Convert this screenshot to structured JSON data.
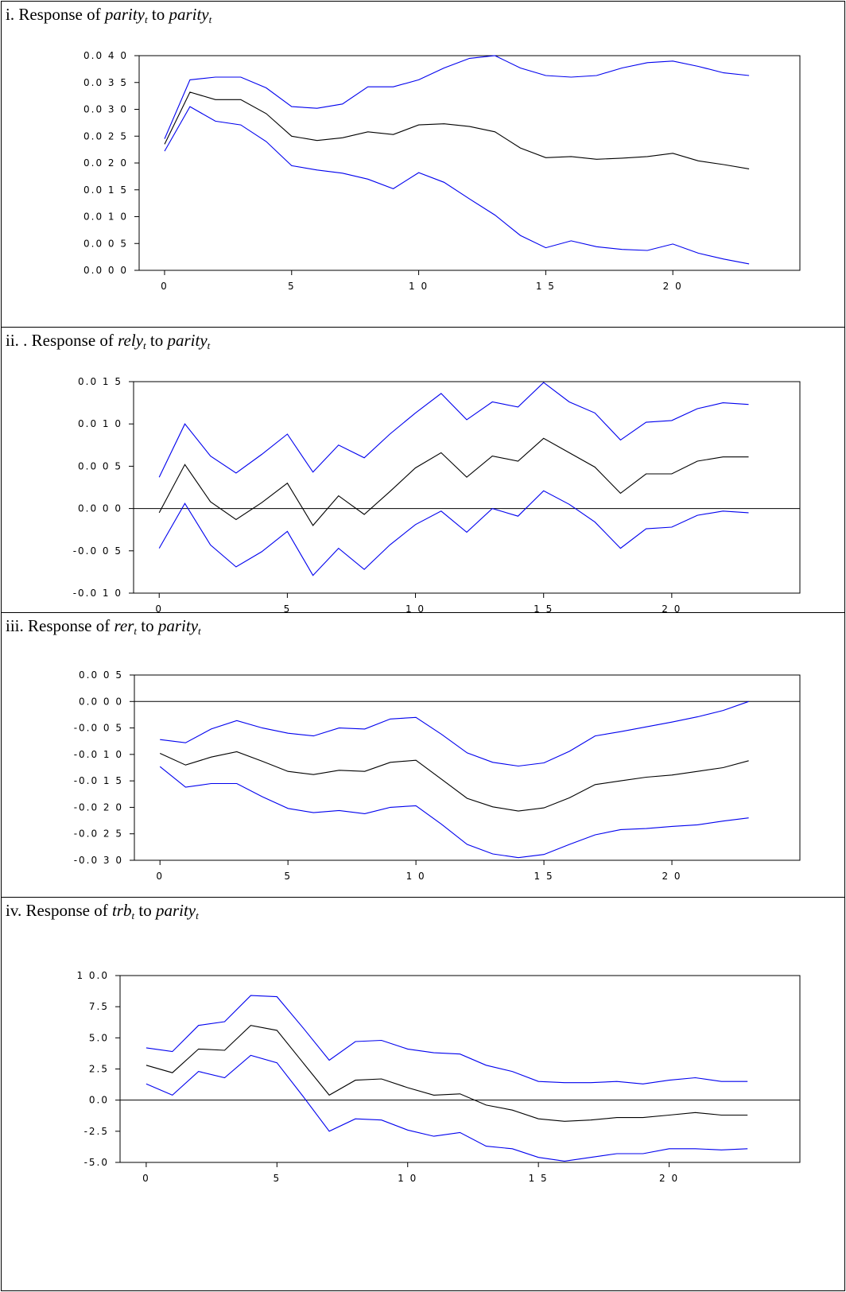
{
  "panels": [
    {
      "caption": {
        "prefix": "i. Response of ",
        "var": "parity",
        "sub": "t",
        "mid": " to ",
        "shock": "parity",
        "shock_sub": "t"
      },
      "chart_data": {
        "type": "line",
        "x": [
          0,
          1,
          2,
          3,
          4,
          5,
          6,
          7,
          8,
          9,
          10,
          11,
          12,
          13,
          14,
          15,
          16,
          17,
          18,
          19,
          20,
          21,
          22,
          23
        ],
        "series": [
          {
            "values": [
              0.0245,
              0.0355,
              0.036,
              0.036,
              0.034,
              0.0305,
              0.0302,
              0.031,
              0.0342,
              0.0342,
              0.0355,
              0.0377,
              0.0395,
              0.04,
              0.0377,
              0.0363,
              0.036,
              0.0363,
              0.0377,
              0.0387,
              0.039,
              0.038,
              0.0368,
              0.0363
            ],
            "color": "#0000ee"
          },
          {
            "values": [
              0.0235,
              0.0332,
              0.0318,
              0.0318,
              0.0292,
              0.025,
              0.0242,
              0.0247,
              0.0258,
              0.0253,
              0.0271,
              0.0273,
              0.0268,
              0.0258,
              0.0228,
              0.021,
              0.0212,
              0.0207,
              0.0209,
              0.0212,
              0.0218,
              0.0204,
              0.0197,
              0.0189
            ],
            "color": "#000000"
          },
          {
            "values": [
              0.0222,
              0.0305,
              0.0278,
              0.0271,
              0.024,
              0.0195,
              0.0187,
              0.0181,
              0.017,
              0.0152,
              0.0182,
              0.0164,
              0.0133,
              0.0103,
              0.0065,
              0.0042,
              0.0055,
              0.0044,
              0.0039,
              0.0037,
              0.0049,
              0.0032,
              0.0021,
              0.0012
            ],
            "color": "#0000ee"
          }
        ],
        "xticks": [
          0,
          5,
          10,
          15,
          20
        ],
        "xtick_labels": [
          "0",
          "5",
          "1 0",
          "1 5",
          "2 0"
        ],
        "yticks": [
          0.0,
          0.005,
          0.01,
          0.015,
          0.02,
          0.025,
          0.03,
          0.035,
          0.04
        ],
        "ytick_labels": [
          "0.0 0 0",
          "0.0 0 5",
          "0.0 1 0",
          "0.0 1 5",
          "0.0 2 0",
          "0.0 2 5",
          "0.0 3 0",
          "0.0 3 5",
          "0.0 4 0"
        ],
        "ylim": [
          0.0,
          0.04
        ],
        "xlim": [
          -1,
          25
        ],
        "zero_line": false
      }
    },
    {
      "caption": {
        "prefix": "ii. . Response of ",
        "var": "rely",
        "sub": "t",
        "mid": " to ",
        "shock": "parity",
        "shock_sub": "t"
      },
      "chart_data": {
        "type": "line",
        "x": [
          0,
          1,
          2,
          3,
          4,
          5,
          6,
          7,
          8,
          9,
          10,
          11,
          12,
          13,
          14,
          15,
          16,
          17,
          18,
          19,
          20,
          21,
          22,
          23
        ],
        "series": [
          {
            "values": [
              0.0037,
              0.01,
              0.0062,
              0.0042,
              0.0064,
              0.0088,
              0.0043,
              0.0075,
              0.006,
              0.0088,
              0.0113,
              0.0136,
              0.0105,
              0.0126,
              0.012,
              0.0149,
              0.0126,
              0.0113,
              0.0081,
              0.0102,
              0.0104,
              0.0118,
              0.0125,
              0.0123
            ],
            "color": "#0000ee"
          },
          {
            "values": [
              -0.0005,
              0.0052,
              0.0008,
              -0.0013,
              0.0007,
              0.003,
              -0.002,
              0.0015,
              -0.0007,
              0.002,
              0.0048,
              0.0066,
              0.0037,
              0.0062,
              0.0056,
              0.0083,
              0.0066,
              0.0049,
              0.0018,
              0.0041,
              0.0041,
              0.0056,
              0.0061,
              0.0061
            ],
            "color": "#000000"
          },
          {
            "values": [
              -0.0047,
              0.0006,
              -0.0043,
              -0.0069,
              -0.0051,
              -0.0027,
              -0.0079,
              -0.0047,
              -0.0072,
              -0.0043,
              -0.0019,
              -0.0003,
              -0.0028,
              0.0,
              -0.0009,
              0.0021,
              0.0005,
              -0.0016,
              -0.0047,
              -0.0024,
              -0.0022,
              -0.0008,
              -0.0003,
              -0.0005
            ],
            "color": "#0000ee"
          }
        ],
        "xticks": [
          0,
          5,
          10,
          15,
          20
        ],
        "xtick_labels": [
          "0",
          "5",
          "1 0",
          "1 5",
          "2 0"
        ],
        "yticks": [
          -0.01,
          -0.005,
          0.0,
          0.005,
          0.01,
          0.015
        ],
        "ytick_labels": [
          "-0.0 1 0",
          "-0.0 0 5",
          "0.0 0 0",
          "0.0 0 5",
          "0.0 1 0",
          "0.0 1 5"
        ],
        "ylim": [
          -0.01,
          0.015
        ],
        "xlim": [
          -1,
          25
        ],
        "zero_line": true
      }
    },
    {
      "caption": {
        "prefix": "iii. Response of ",
        "var": "rer",
        "sub": "t",
        "mid": " to ",
        "shock": "parity",
        "shock_sub": "t"
      },
      "chart_data": {
        "type": "line",
        "x": [
          0,
          1,
          2,
          3,
          4,
          5,
          6,
          7,
          8,
          9,
          10,
          11,
          12,
          13,
          14,
          15,
          16,
          17,
          18,
          19,
          20,
          21,
          22,
          23
        ],
        "series": [
          {
            "values": [
              -0.0072,
              -0.0078,
              -0.0052,
              -0.0036,
              -0.005,
              -0.006,
              -0.0065,
              -0.005,
              -0.0052,
              -0.0033,
              -0.003,
              -0.0062,
              -0.0097,
              -0.0115,
              -0.0122,
              -0.0116,
              -0.0094,
              -0.0065,
              -0.0057,
              -0.0048,
              -0.0039,
              -0.0029,
              -0.0017,
              0.0
            ],
            "color": "#0000ee"
          },
          {
            "values": [
              -0.0098,
              -0.012,
              -0.0105,
              -0.0095,
              -0.0113,
              -0.0132,
              -0.0138,
              -0.013,
              -0.0132,
              -0.0115,
              -0.0111,
              -0.0147,
              -0.0183,
              -0.0199,
              -0.0207,
              -0.0201,
              -0.0182,
              -0.0157,
              -0.015,
              -0.0143,
              -0.0139,
              -0.0132,
              -0.0125,
              -0.0112
            ],
            "color": "#000000"
          },
          {
            "values": [
              -0.0123,
              -0.0162,
              -0.0155,
              -0.0155,
              -0.018,
              -0.0202,
              -0.021,
              -0.0206,
              -0.0212,
              -0.02,
              -0.0197,
              -0.0232,
              -0.027,
              -0.0288,
              -0.0295,
              -0.0289,
              -0.027,
              -0.0252,
              -0.0242,
              -0.024,
              -0.0236,
              -0.0233,
              -0.0226,
              -0.022
            ],
            "color": "#0000ee"
          }
        ],
        "xticks": [
          0,
          5,
          10,
          15,
          20
        ],
        "xtick_labels": [
          "0",
          "5",
          "1 0",
          "1 5",
          "2 0"
        ],
        "yticks": [
          -0.03,
          -0.025,
          -0.02,
          -0.015,
          -0.01,
          -0.005,
          0.0,
          0.005
        ],
        "ytick_labels": [
          "-0.0 3 0",
          "-0.0 2 5",
          "-0.0 2 0",
          "-0.0 1 5",
          "-0.0 1 0",
          "-0.0 0 5",
          "0.0 0 0",
          "0.0 0 5"
        ],
        "ylim": [
          -0.03,
          0.005
        ],
        "xlim": [
          -1,
          25
        ],
        "zero_line": true
      }
    },
    {
      "caption": {
        "prefix": "iv. Response of ",
        "var": "trb",
        "sub": "t",
        "mid": " to ",
        "shock": "parity",
        "shock_sub": "t"
      },
      "chart_data": {
        "type": "line",
        "x": [
          0,
          1,
          2,
          3,
          4,
          5,
          6,
          7,
          8,
          9,
          10,
          11,
          12,
          13,
          14,
          15,
          16,
          17,
          18,
          19,
          20,
          21,
          22,
          23
        ],
        "series": [
          {
            "values": [
              4.2,
              3.9,
              6.0,
              6.3,
              8.4,
              8.3,
              5.8,
              3.2,
              4.7,
              4.8,
              4.1,
              3.8,
              3.7,
              2.8,
              2.3,
              1.5,
              1.4,
              1.4,
              1.5,
              1.3,
              1.6,
              1.8,
              1.5,
              1.5
            ],
            "color": "#0000ee"
          },
          {
            "values": [
              2.8,
              2.2,
              4.1,
              4.0,
              6.0,
              5.6,
              3.0,
              0.4,
              1.6,
              1.7,
              1.0,
              0.4,
              0.5,
              -0.4,
              -0.8,
              -1.5,
              -1.7,
              -1.6,
              -1.4,
              -1.4,
              -1.2,
              -1.0,
              -1.2,
              -1.2
            ],
            "color": "#000000"
          },
          {
            "values": [
              1.3,
              0.4,
              2.3,
              1.8,
              3.6,
              3.0,
              0.3,
              -2.5,
              -1.5,
              -1.6,
              -2.4,
              -2.9,
              -2.6,
              -3.7,
              -3.9,
              -4.6,
              -4.9,
              -4.6,
              -4.3,
              -4.3,
              -3.9,
              -3.9,
              -4.0,
              -3.9
            ],
            "color": "#0000ee"
          }
        ],
        "xticks": [
          0,
          5,
          10,
          15,
          20
        ],
        "xtick_labels": [
          "0",
          "5",
          "1 0",
          "1 5",
          "2 0"
        ],
        "yticks": [
          -5.0,
          -2.5,
          0.0,
          2.5,
          5.0,
          7.5,
          10.0
        ],
        "ytick_labels": [
          "-5.0",
          "-2.5",
          "0.0",
          "2.5",
          "5.0",
          "7.5",
          "1 0.0"
        ],
        "ylim": [
          -5.0,
          10.0
        ],
        "xlim": [
          -1,
          25
        ],
        "zero_line": true
      }
    }
  ]
}
